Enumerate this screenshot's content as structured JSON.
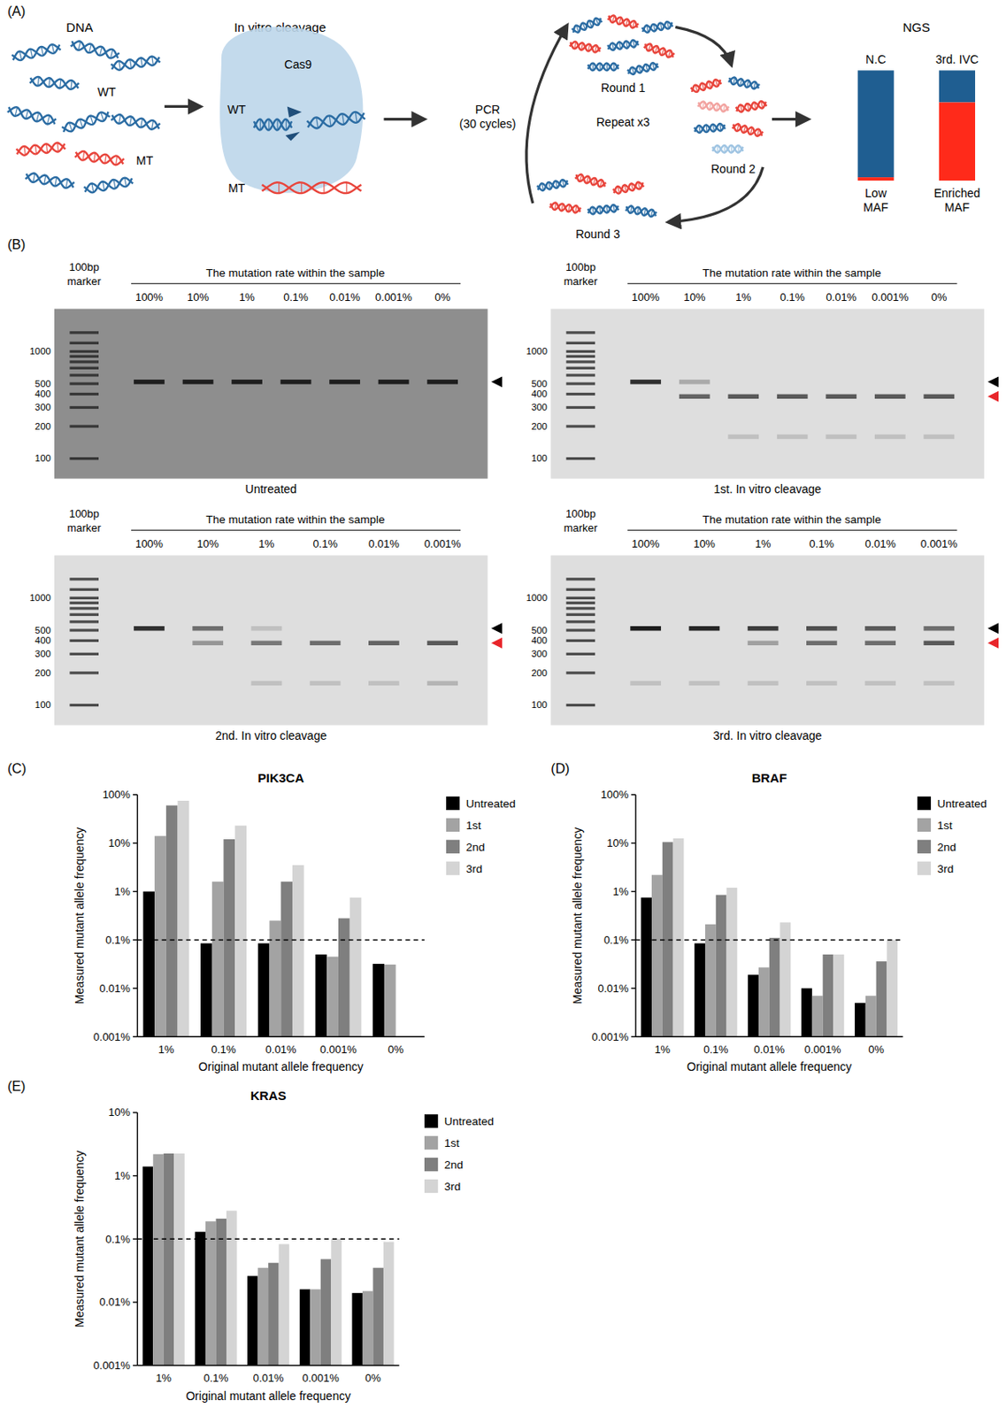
{
  "panel_labels": [
    "(A)",
    "(B)",
    "(C)",
    "(D)",
    "(E)"
  ],
  "schematic": {
    "dna": {
      "title": "DNA",
      "wt": "WT",
      "mt": "MT"
    },
    "cleavage": {
      "title": "In vitro cleavage",
      "enzyme": "Cas9",
      "wt": "WT",
      "mt": "MT"
    },
    "cycle": {
      "step": "PCR (30 cycles)",
      "center": "Repeat x3",
      "rounds": [
        "Round 1",
        "Round 2",
        "Round 3"
      ]
    },
    "ngs": {
      "title": "NGS",
      "bars": [
        {
          "label": "N.C",
          "caption": "Low MAF",
          "mt_fraction": 3
        },
        {
          "label": "3rd. IVC",
          "caption": "Enriched MAF",
          "mt_fraction": 71
        }
      ]
    }
  },
  "gels": {
    "header": "The mutation rate within the sample",
    "marker_label": "100bp marker",
    "size_range": [
      65,
      2500
    ],
    "ladder": [
      100,
      200,
      300,
      400,
      500,
      600,
      700,
      800,
      900,
      1000,
      1200,
      1500
    ],
    "ladder_ticks": [
      1000,
      500,
      400,
      300,
      200,
      100
    ],
    "panels": [
      {
        "caption": "Untreated",
        "color": "#8e8e8e",
        "lanes": [
          "100%",
          "10%",
          "1%",
          "0.1%",
          "0.01%",
          "0.001%",
          "0%"
        ],
        "bands": [
          [
            {
              "size": 520,
              "intensity": 0.9
            }
          ],
          [
            {
              "size": 520,
              "intensity": 0.9
            }
          ],
          [
            {
              "size": 520,
              "intensity": 0.9
            }
          ],
          [
            {
              "size": 520,
              "intensity": 0.9
            }
          ],
          [
            {
              "size": 520,
              "intensity": 0.9
            }
          ],
          [
            {
              "size": 520,
              "intensity": 0.9
            }
          ],
          [
            {
              "size": 520,
              "intensity": 0.9
            }
          ]
        ],
        "arrows": [
          {
            "size": 520,
            "color": "#000000"
          }
        ]
      },
      {
        "caption": "1st. In vitro cleavage",
        "color": "#dedede",
        "lanes": [
          "100%",
          "10%",
          "1%",
          "0.1%",
          "0.01%",
          "0.001%",
          "0%"
        ],
        "bands": [
          [
            {
              "size": 520,
              "intensity": 0.85
            }
          ],
          [
            {
              "size": 520,
              "intensity": 0.25
            },
            {
              "size": 380,
              "intensity": 0.6
            }
          ],
          [
            {
              "size": 380,
              "intensity": 0.65
            },
            {
              "size": 160,
              "intensity": 0.15
            }
          ],
          [
            {
              "size": 380,
              "intensity": 0.65
            },
            {
              "size": 160,
              "intensity": 0.15
            }
          ],
          [
            {
              "size": 380,
              "intensity": 0.65
            },
            {
              "size": 160,
              "intensity": 0.15
            }
          ],
          [
            {
              "size": 380,
              "intensity": 0.65
            },
            {
              "size": 160,
              "intensity": 0.15
            }
          ],
          [
            {
              "size": 380,
              "intensity": 0.65
            },
            {
              "size": 160,
              "intensity": 0.15
            }
          ]
        ],
        "arrows": [
          {
            "size": 520,
            "color": "#000000"
          },
          {
            "size": 380,
            "color": "#e8252a"
          }
        ]
      },
      {
        "caption": "2nd. In vitro cleavage",
        "color": "#dedede",
        "lanes": [
          "100%",
          "10%",
          "1%",
          "0.1%",
          "0.01%",
          "0.001%"
        ],
        "bands": [
          [
            {
              "size": 520,
              "intensity": 0.85
            }
          ],
          [
            {
              "size": 520,
              "intensity": 0.55
            },
            {
              "size": 380,
              "intensity": 0.35
            }
          ],
          [
            {
              "size": 520,
              "intensity": 0.15
            },
            {
              "size": 380,
              "intensity": 0.5
            },
            {
              "size": 160,
              "intensity": 0.15
            }
          ],
          [
            {
              "size": 380,
              "intensity": 0.55
            },
            {
              "size": 160,
              "intensity": 0.15
            }
          ],
          [
            {
              "size": 380,
              "intensity": 0.6
            },
            {
              "size": 160,
              "intensity": 0.15
            }
          ],
          [
            {
              "size": 380,
              "intensity": 0.65
            },
            {
              "size": 160,
              "intensity": 0.2
            }
          ]
        ],
        "arrows": [
          {
            "size": 520,
            "color": "#000000"
          },
          {
            "size": 380,
            "color": "#e8252a"
          }
        ]
      },
      {
        "caption": "3rd. In vitro cleavage",
        "color": "#dedede",
        "lanes": [
          "100%",
          "10%",
          "1%",
          "0.1%",
          "0.01%",
          "0.001%"
        ],
        "bands": [
          [
            {
              "size": 520,
              "intensity": 0.95
            },
            {
              "size": 160,
              "intensity": 0.15
            }
          ],
          [
            {
              "size": 520,
              "intensity": 0.9
            },
            {
              "size": 160,
              "intensity": 0.15
            }
          ],
          [
            {
              "size": 520,
              "intensity": 0.8
            },
            {
              "size": 380,
              "intensity": 0.3
            },
            {
              "size": 160,
              "intensity": 0.15
            }
          ],
          [
            {
              "size": 520,
              "intensity": 0.7
            },
            {
              "size": 380,
              "intensity": 0.55
            },
            {
              "size": 160,
              "intensity": 0.15
            }
          ],
          [
            {
              "size": 520,
              "intensity": 0.65
            },
            {
              "size": 380,
              "intensity": 0.55
            },
            {
              "size": 160,
              "intensity": 0.15
            }
          ],
          [
            {
              "size": 520,
              "intensity": 0.55
            },
            {
              "size": 380,
              "intensity": 0.65
            },
            {
              "size": 160,
              "intensity": 0.15
            }
          ]
        ],
        "arrows": [
          {
            "size": 520,
            "color": "#000000"
          },
          {
            "size": 380,
            "color": "#e8252a"
          }
        ]
      }
    ]
  },
  "chart_data": [
    {
      "type": "bar",
      "title": "PIK3CA",
      "x_label": "Original mutant allele frequency",
      "y_label": "Measured mutant allele frequency",
      "categories": [
        "1%",
        "0.1%",
        "0.01%",
        "0.001%",
        "0%"
      ],
      "series": [
        {
          "name": "Untreated",
          "color": "#000000",
          "values": [
            1,
            0.085,
            0.085,
            0.05,
            0.032
          ]
        },
        {
          "name": "1st",
          "color": "#a3a3a3",
          "values": [
            14,
            1.6,
            0.25,
            0.045,
            0.031
          ]
        },
        {
          "name": "2nd",
          "color": "#7f7f7f",
          "values": [
            60,
            12,
            1.6,
            0.28,
            null
          ]
        },
        {
          "name": "3rd",
          "color": "#d4d4d4",
          "values": [
            75,
            23,
            3.5,
            0.75,
            null
          ]
        }
      ],
      "ylim": [
        0.001,
        100
      ],
      "yticks": [
        {
          "value": 0.001,
          "label": "0.001%"
        },
        {
          "value": 0.01,
          "label": "0.01%"
        },
        {
          "value": 0.1,
          "label": "0.1%"
        },
        {
          "value": 1,
          "label": "1%"
        },
        {
          "value": 10,
          "label": "10%"
        },
        {
          "value": 100,
          "label": "100%"
        }
      ],
      "log": "y",
      "legend": "right",
      "threshold": 0.1
    },
    {
      "type": "bar",
      "title": "BRAF",
      "x_label": "Original mutant allele frequency",
      "y_label": "Measured mutant allele frequency",
      "categories": [
        "1%",
        "0.1%",
        "0.01%",
        "0.001%",
        "0%"
      ],
      "series": [
        {
          "name": "Untreated",
          "color": "#000000",
          "values": [
            0.75,
            0.085,
            0.019,
            0.01,
            0.005
          ]
        },
        {
          "name": "1st",
          "color": "#a3a3a3",
          "values": [
            2.2,
            0.21,
            0.027,
            0.007,
            0.007
          ]
        },
        {
          "name": "2nd",
          "color": "#7f7f7f",
          "values": [
            10.5,
            0.85,
            0.11,
            0.05,
            0.036
          ]
        },
        {
          "name": "3rd",
          "color": "#d4d4d4",
          "values": [
            12.5,
            1.2,
            0.23,
            0.05,
            0.1
          ]
        }
      ],
      "ylim": [
        0.001,
        100
      ],
      "yticks": [
        {
          "value": 0.001,
          "label": "0.001%"
        },
        {
          "value": 0.01,
          "label": "0.01%"
        },
        {
          "value": 0.1,
          "label": "0.1%"
        },
        {
          "value": 1,
          "label": "1%"
        },
        {
          "value": 10,
          "label": "10%"
        },
        {
          "value": 100,
          "label": "100%"
        }
      ],
      "log": "y",
      "legend": "right",
      "threshold": 0.1
    },
    {
      "type": "bar",
      "title": "KRAS",
      "x_label": "Original mutant allele frequency",
      "y_label": "Measured mutant allele frequency",
      "categories": [
        "1%",
        "0.1%",
        "0.01%",
        "0.001%",
        "0%"
      ],
      "series": [
        {
          "name": "Untreated",
          "color": "#000000",
          "values": [
            1.4,
            0.13,
            0.026,
            0.016,
            0.014
          ]
        },
        {
          "name": "1st",
          "color": "#a3a3a3",
          "values": [
            2.2,
            0.19,
            0.035,
            0.016,
            0.015
          ]
        },
        {
          "name": "2nd",
          "color": "#7f7f7f",
          "values": [
            2.25,
            0.21,
            0.042,
            0.048,
            0.035
          ]
        },
        {
          "name": "3rd",
          "color": "#d4d4d4",
          "values": [
            2.25,
            0.28,
            0.083,
            0.1,
            0.09
          ]
        }
      ],
      "ylim": [
        0.001,
        10
      ],
      "yticks": [
        {
          "value": 0.001,
          "label": "0.001%"
        },
        {
          "value": 0.01,
          "label": "0.01%"
        },
        {
          "value": 0.1,
          "label": "0.1%"
        },
        {
          "value": 1,
          "label": "1%"
        },
        {
          "value": 10,
          "label": "10%"
        }
      ],
      "log": "y",
      "legend": "right",
      "threshold": 0.1
    }
  ]
}
